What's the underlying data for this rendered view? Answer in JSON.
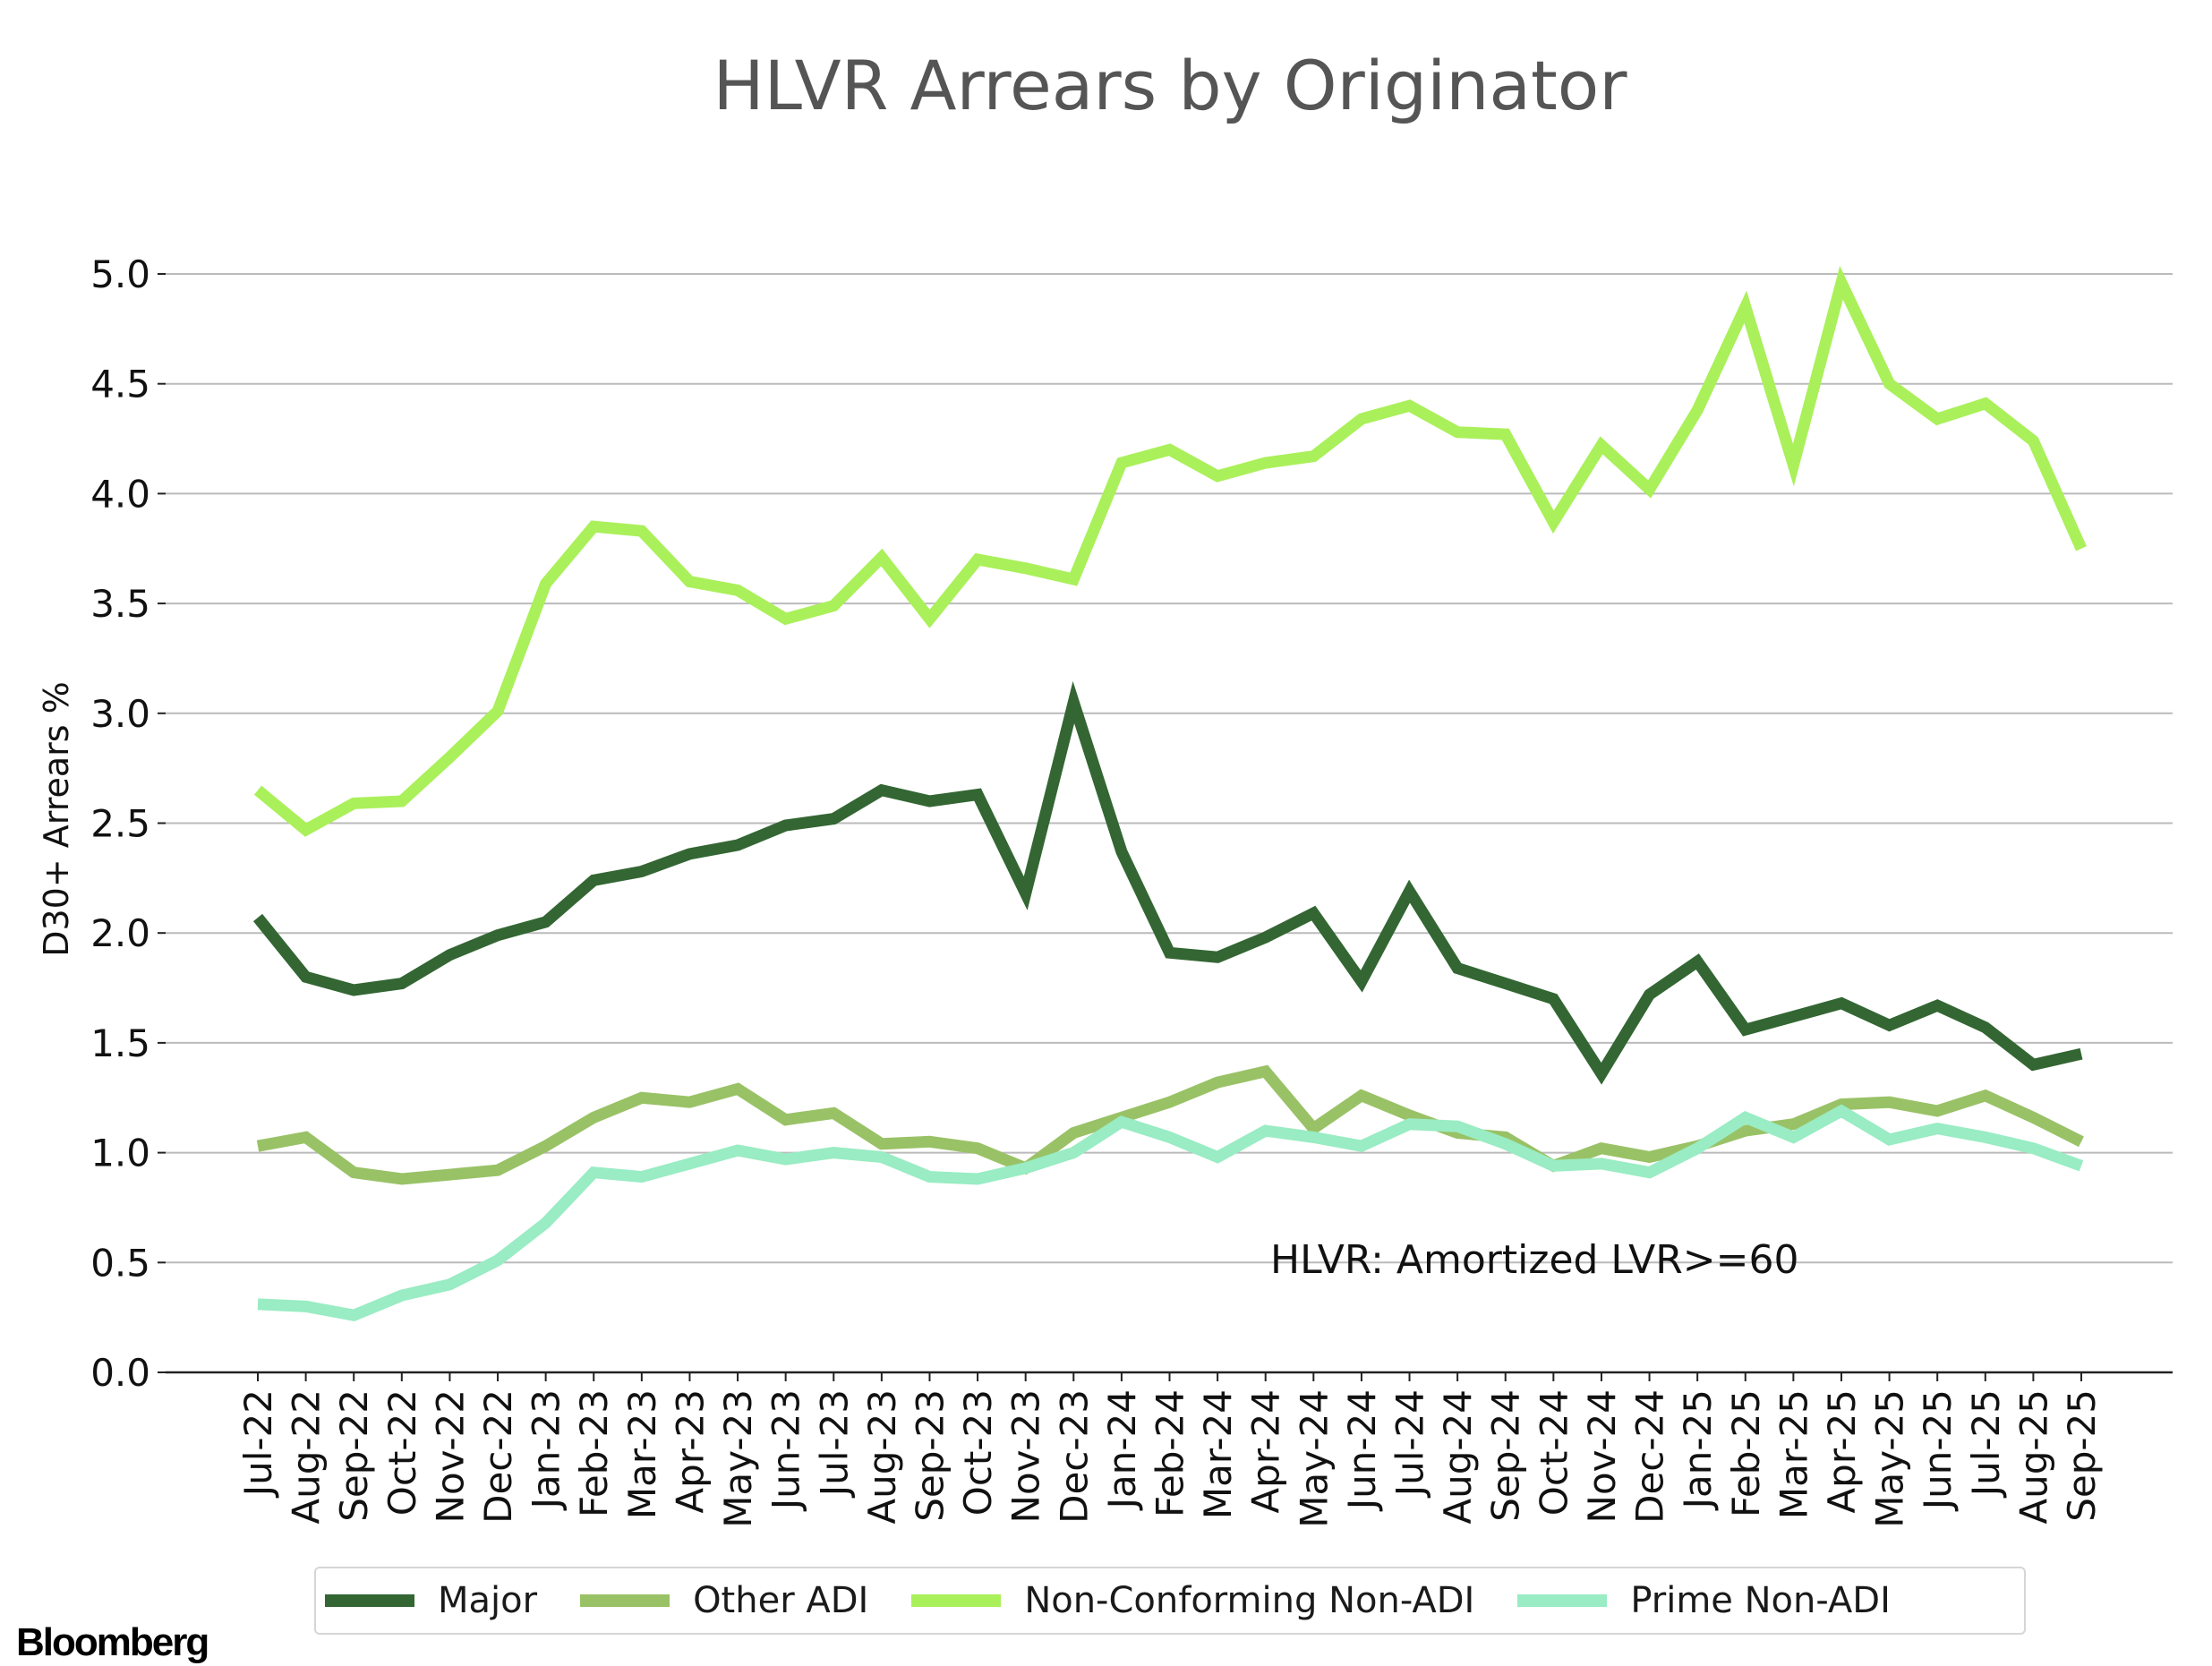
{
  "chart_data": {
    "type": "line",
    "title": "HLVR Arrears by Originator",
    "xlabel": "",
    "ylabel": "D30+ Arrears %",
    "ylim": [
      0,
      5.0
    ],
    "yticks": [
      "0.0",
      "0.5",
      "1.0",
      "1.5",
      "2.0",
      "2.5",
      "3.0",
      "3.5",
      "4.0",
      "4.5",
      "5.0"
    ],
    "grid": "horizontal",
    "legend_position": "bottom",
    "annotation": "HLVR: Amortized LVR>=60",
    "categories": [
      "Jul-22",
      "Aug-22",
      "Sep-22",
      "Oct-22",
      "Nov-22",
      "Dec-22",
      "Jan-23",
      "Feb-23",
      "Mar-23",
      "Apr-23",
      "May-23",
      "Jun-23",
      "Jul-23",
      "Aug-23",
      "Sep-23",
      "Oct-23",
      "Nov-23",
      "Dec-23",
      "Jan-24",
      "Feb-24",
      "Mar-24",
      "Apr-24",
      "May-24",
      "Jun-24",
      "Jul-24",
      "Aug-24",
      "Sep-24",
      "Oct-24",
      "Nov-24",
      "Dec-24",
      "Jan-25",
      "Feb-25",
      "Mar-25",
      "Apr-25",
      "May-25",
      "Jun-25",
      "Jul-25",
      "Aug-25",
      "Sep-25"
    ],
    "series": [
      {
        "name": "Major",
        "color": "#336633",
        "values": [
          2.07,
          1.8,
          1.74,
          1.77,
          1.9,
          1.99,
          2.05,
          2.24,
          2.28,
          2.36,
          2.4,
          2.49,
          2.52,
          2.65,
          2.6,
          2.63,
          2.18,
          3.05,
          2.37,
          1.91,
          1.89,
          1.98,
          2.09,
          1.78,
          2.19,
          1.84,
          1.77,
          1.7,
          1.36,
          1.72,
          1.87,
          1.56,
          1.62,
          1.68,
          1.58,
          1.67,
          1.57,
          1.4,
          1.45
        ]
      },
      {
        "name": "Other ADI",
        "color": "#99c266",
        "values": [
          1.03,
          1.07,
          0.91,
          0.88,
          0.9,
          0.92,
          1.03,
          1.16,
          1.25,
          1.23,
          1.29,
          1.15,
          1.18,
          1.04,
          1.05,
          1.02,
          0.93,
          1.09,
          1.16,
          1.23,
          1.32,
          1.37,
          1.11,
          1.26,
          1.17,
          1.09,
          1.07,
          0.94,
          1.02,
          0.98,
          1.03,
          1.1,
          1.13,
          1.22,
          1.23,
          1.19,
          1.26,
          1.16,
          1.05
        ]
      },
      {
        "name": "Non-Conforming Non-ADI",
        "color": "#aaf05a",
        "values": [
          2.65,
          2.47,
          2.59,
          2.6,
          2.8,
          3.01,
          3.59,
          3.85,
          3.83,
          3.6,
          3.56,
          3.43,
          3.49,
          3.71,
          3.43,
          3.7,
          3.66,
          3.61,
          4.14,
          4.2,
          4.08,
          4.14,
          4.17,
          4.34,
          4.4,
          4.28,
          4.27,
          3.87,
          4.22,
          4.02,
          4.38,
          4.85,
          4.13,
          4.96,
          4.5,
          4.34,
          4.41,
          4.24,
          3.75
        ]
      },
      {
        "name": "Prime Non-ADI",
        "color": "#99ecc3",
        "values": [
          0.31,
          0.3,
          0.26,
          0.35,
          0.4,
          0.51,
          0.68,
          0.91,
          0.89,
          0.95,
          1.01,
          0.97,
          1.0,
          0.98,
          0.89,
          0.88,
          0.93,
          1.0,
          1.14,
          1.07,
          0.98,
          1.1,
          1.07,
          1.03,
          1.13,
          1.12,
          1.04,
          0.94,
          0.95,
          0.91,
          1.02,
          1.16,
          1.07,
          1.19,
          1.06,
          1.11,
          1.07,
          1.02,
          0.94
        ]
      }
    ]
  },
  "footer": {
    "brand": "Bloomberg"
  },
  "colors": {
    "title": "#555555",
    "grid": "#bbbbbb",
    "axis": "#222222"
  }
}
